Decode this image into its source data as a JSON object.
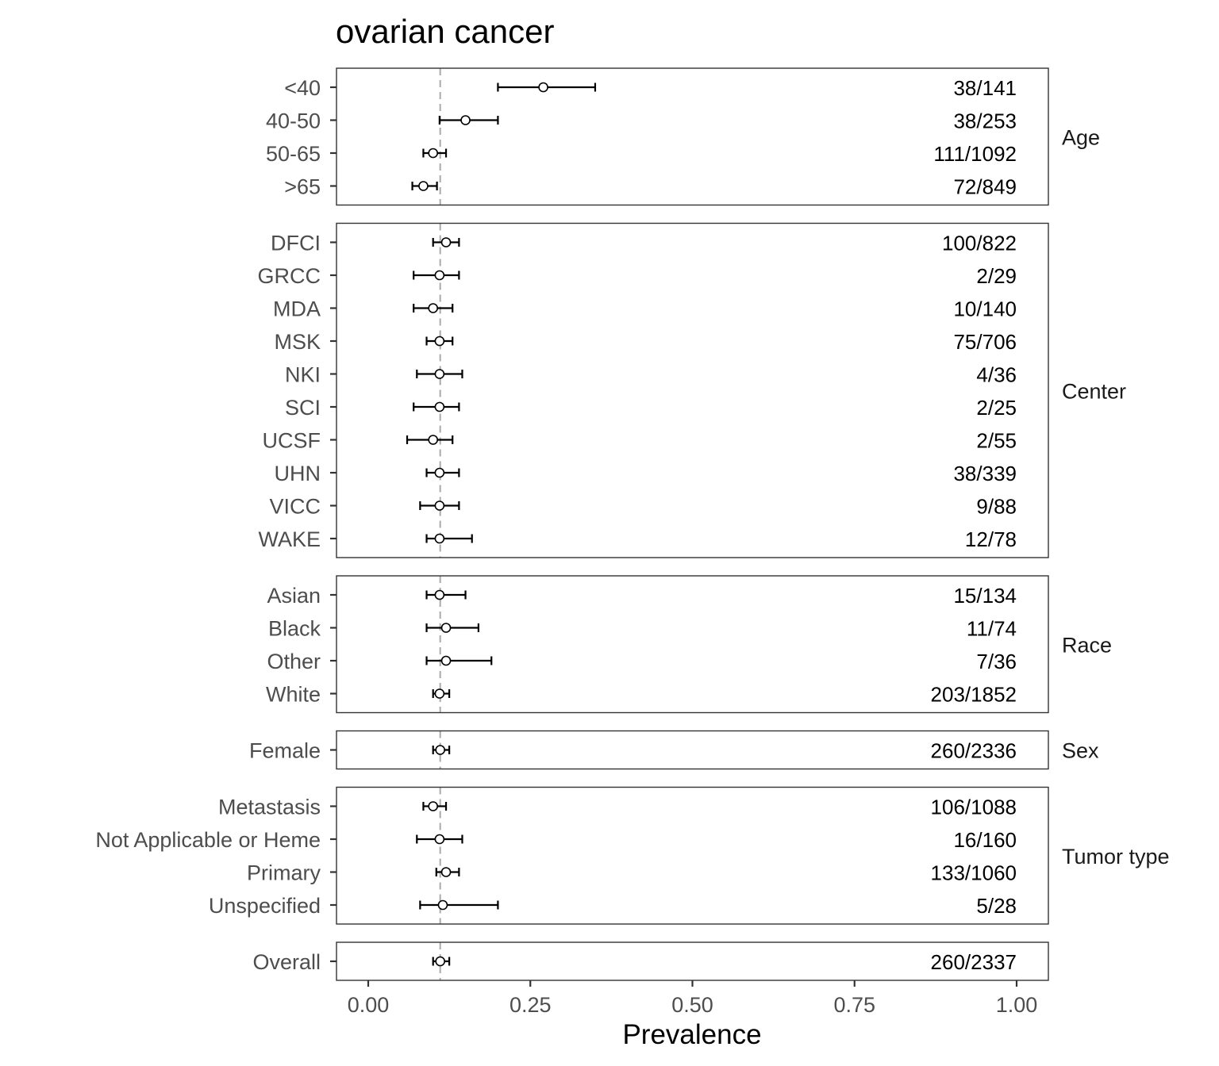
{
  "chart_data": {
    "type": "forest",
    "title": "ovarian cancer",
    "xlabel": "Prevalence",
    "ylabel": "",
    "xlim": [
      0,
      1
    ],
    "xticks": [
      "0.00",
      "0.25",
      "0.50",
      "0.75",
      "1.00"
    ],
    "reference_line": 0.111,
    "grid": false,
    "panels": [
      {
        "strip": "Age",
        "rows": [
          {
            "label": "<40",
            "estimate": 0.27,
            "lower": 0.2,
            "upper": 0.35,
            "count": "38/141"
          },
          {
            "label": "40-50",
            "estimate": 0.15,
            "lower": 0.11,
            "upper": 0.2,
            "count": "38/253"
          },
          {
            "label": "50-65",
            "estimate": 0.1,
            "lower": 0.085,
            "upper": 0.12,
            "count": "111/1092"
          },
          {
            "label": ">65",
            "estimate": 0.085,
            "lower": 0.068,
            "upper": 0.106,
            "count": "72/849"
          }
        ]
      },
      {
        "strip": "Center",
        "rows": [
          {
            "label": "DFCI",
            "estimate": 0.12,
            "lower": 0.1,
            "upper": 0.14,
            "count": "100/822"
          },
          {
            "label": "GRCC",
            "estimate": 0.11,
            "lower": 0.07,
            "upper": 0.14,
            "count": "2/29"
          },
          {
            "label": "MDA",
            "estimate": 0.1,
            "lower": 0.07,
            "upper": 0.13,
            "count": "10/140"
          },
          {
            "label": "MSK",
            "estimate": 0.11,
            "lower": 0.09,
            "upper": 0.13,
            "count": "75/706"
          },
          {
            "label": "NKI",
            "estimate": 0.11,
            "lower": 0.075,
            "upper": 0.145,
            "count": "4/36"
          },
          {
            "label": "SCI",
            "estimate": 0.11,
            "lower": 0.07,
            "upper": 0.14,
            "count": "2/25"
          },
          {
            "label": "UCSF",
            "estimate": 0.1,
            "lower": 0.06,
            "upper": 0.13,
            "count": "2/55"
          },
          {
            "label": "UHN",
            "estimate": 0.11,
            "lower": 0.09,
            "upper": 0.14,
            "count": "38/339"
          },
          {
            "label": "VICC",
            "estimate": 0.11,
            "lower": 0.08,
            "upper": 0.14,
            "count": "9/88"
          },
          {
            "label": "WAKE",
            "estimate": 0.11,
            "lower": 0.09,
            "upper": 0.16,
            "count": "12/78"
          }
        ]
      },
      {
        "strip": "Race",
        "rows": [
          {
            "label": "Asian",
            "estimate": 0.11,
            "lower": 0.09,
            "upper": 0.15,
            "count": "15/134"
          },
          {
            "label": "Black",
            "estimate": 0.12,
            "lower": 0.09,
            "upper": 0.17,
            "count": "11/74"
          },
          {
            "label": "Other",
            "estimate": 0.12,
            "lower": 0.09,
            "upper": 0.19,
            "count": "7/36"
          },
          {
            "label": "White",
            "estimate": 0.11,
            "lower": 0.1,
            "upper": 0.125,
            "count": "203/1852"
          }
        ]
      },
      {
        "strip": "Sex",
        "rows": [
          {
            "label": "Female",
            "estimate": 0.111,
            "lower": 0.1,
            "upper": 0.125,
            "count": "260/2336"
          }
        ]
      },
      {
        "strip": "Tumor type",
        "rows": [
          {
            "label": "Metastasis",
            "estimate": 0.1,
            "lower": 0.085,
            "upper": 0.12,
            "count": "106/1088"
          },
          {
            "label": "Not Applicable or Heme",
            "estimate": 0.11,
            "lower": 0.075,
            "upper": 0.145,
            "count": "16/160"
          },
          {
            "label": "Primary",
            "estimate": 0.12,
            "lower": 0.105,
            "upper": 0.14,
            "count": "133/1060"
          },
          {
            "label": "Unspecified",
            "estimate": 0.115,
            "lower": 0.08,
            "upper": 0.2,
            "count": "5/28"
          }
        ]
      },
      {
        "strip": "",
        "rows": [
          {
            "label": "Overall",
            "estimate": 0.111,
            "lower": 0.1,
            "upper": 0.125,
            "count": "260/2337"
          }
        ]
      }
    ]
  }
}
